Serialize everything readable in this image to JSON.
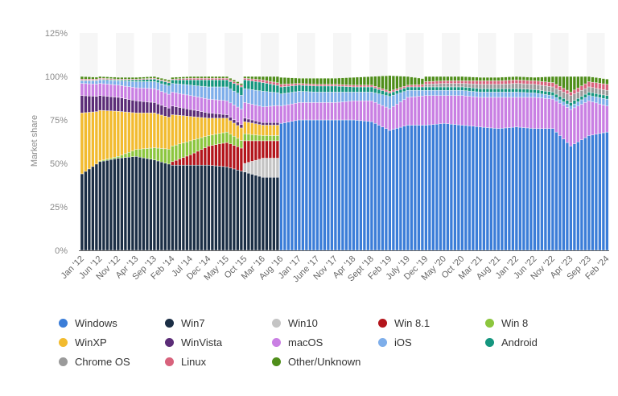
{
  "chart_data": {
    "type": "bar",
    "stacked": true,
    "title": "",
    "xlabel": "",
    "ylabel": "Market share",
    "ylim": [
      0,
      125
    ],
    "yticks": [
      "0%",
      "25%",
      "50%",
      "75%",
      "100%",
      "125%"
    ],
    "grid": false,
    "legend_position": "bottom",
    "categories": [
      "Jan '12",
      "Jun '12",
      "Nov '12",
      "Apr '13",
      "Sep '13",
      "Feb '14",
      "Jul '14",
      "Dec '14",
      "May '15",
      "Oct '15",
      "Mar '16",
      "Aug '16",
      "Jan '17",
      "June '17",
      "Nov '17",
      "Apr '18",
      "Sept '18",
      "Feb '19",
      "July '19",
      "Dec '19",
      "May '20",
      "Oct '20",
      "Mar '21",
      "Aug '21",
      "Jan '22",
      "Jun '22",
      "Nov '22",
      "Apr '23",
      "Sep '23",
      "Feb '24"
    ],
    "series": [
      {
        "name": "Windows",
        "color": "#3b7dd8",
        "values": [
          null,
          null,
          null,
          null,
          null,
          null,
          null,
          null,
          null,
          null,
          null,
          73,
          75,
          75,
          75,
          75,
          74,
          69,
          72,
          72,
          73,
          72,
          71,
          70,
          71,
          70,
          70,
          60,
          66,
          68
        ]
      },
      {
        "name": "Win7",
        "color": "#1b2e45",
        "values": [
          44,
          51,
          53,
          54,
          52,
          49,
          49,
          49,
          48,
          45,
          42,
          null,
          null,
          null,
          null,
          null,
          null,
          null,
          null,
          null,
          null,
          null,
          null,
          null,
          null,
          null,
          null,
          null,
          null,
          null
        ]
      },
      {
        "name": "Win10",
        "color": "#c4c4c4",
        "values": [
          null,
          null,
          null,
          null,
          null,
          null,
          null,
          null,
          null,
          5,
          11,
          null,
          null,
          null,
          null,
          null,
          null,
          null,
          null,
          null,
          null,
          null,
          null,
          null,
          null,
          null,
          null,
          null,
          null,
          null
        ]
      },
      {
        "name": "Win 8.1",
        "color": "#b3151c",
        "values": [
          null,
          null,
          null,
          null,
          null,
          2,
          6,
          11,
          14,
          13,
          10,
          null,
          null,
          null,
          null,
          null,
          null,
          null,
          null,
          null,
          null,
          null,
          null,
          null,
          null,
          null,
          null,
          null,
          null,
          null
        ]
      },
      {
        "name": "Win 8",
        "color": "#8cc63e",
        "values": [
          null,
          0.5,
          1,
          4,
          7,
          9,
          8,
          6,
          6,
          4,
          3,
          null,
          null,
          null,
          null,
          null,
          null,
          null,
          null,
          null,
          null,
          null,
          null,
          null,
          null,
          null,
          null,
          null,
          null,
          null
        ]
      },
      {
        "name": "WinXP",
        "color": "#f2bb2f",
        "values": [
          35,
          29,
          26,
          21,
          20,
          18,
          14,
          10,
          8,
          7,
          6,
          null,
          null,
          null,
          null,
          null,
          null,
          null,
          null,
          null,
          null,
          null,
          null,
          null,
          null,
          null,
          null,
          null,
          null,
          null
        ]
      },
      {
        "name": "WinVista",
        "color": "#5b2c77",
        "values": [
          10,
          8.5,
          8,
          7,
          6,
          5,
          4,
          3,
          2,
          2,
          1.5,
          null,
          null,
          null,
          null,
          null,
          null,
          null,
          null,
          null,
          null,
          null,
          null,
          null,
          null,
          null,
          null,
          null,
          null,
          null
        ]
      },
      {
        "name": "macOS",
        "color": "#c97fe3",
        "values": [
          7,
          7,
          7,
          7.5,
          8,
          8,
          8,
          8,
          8,
          9,
          9,
          10,
          10,
          10,
          10,
          11,
          12,
          12.5,
          16,
          17,
          16,
          17,
          17,
          18,
          17,
          18,
          17,
          21,
          20,
          15
        ]
      },
      {
        "name": "iOS",
        "color": "#7eaeea",
        "values": [
          1.5,
          2,
          2.5,
          3.5,
          4,
          5,
          6,
          7,
          8,
          8,
          9,
          7,
          6.5,
          6,
          6,
          5,
          5,
          7,
          4,
          3,
          3,
          3,
          3,
          3,
          3,
          2.5,
          2,
          2,
          3,
          4
        ]
      },
      {
        "name": "Android",
        "color": "#15967f",
        "values": [
          0.3,
          0.4,
          0.5,
          1,
          1.5,
          2,
          3,
          4,
          4,
          5,
          5,
          4,
          3.5,
          3.5,
          3.5,
          3,
          3,
          2,
          2,
          2,
          2,
          2,
          2,
          2,
          2,
          2,
          2,
          2,
          2,
          2
        ]
      },
      {
        "name": "Chrome OS",
        "color": "#9a9a9a",
        "values": [
          null,
          null,
          null,
          null,
          null,
          null,
          null,
          null,
          null,
          null,
          null,
          null,
          null,
          null,
          null,
          null,
          null,
          null,
          null,
          1.5,
          2,
          2,
          2.5,
          2.5,
          3,
          3,
          3,
          4,
          3,
          3
        ]
      },
      {
        "name": "Linux",
        "color": "#d8627c",
        "values": [
          0.7,
          0.6,
          0.5,
          0.5,
          0.5,
          0.5,
          1,
          1,
          1,
          1,
          1.5,
          1.5,
          1,
          1,
          1,
          1,
          1,
          1,
          1,
          1.5,
          1.5,
          1.5,
          2,
          2,
          2,
          2,
          2.5,
          2,
          3,
          3.5
        ]
      },
      {
        "name": "Other/Unknown",
        "color": "#4f8e1a",
        "values": [
          1.5,
          1,
          1,
          1,
          1,
          1,
          1,
          1,
          1,
          1,
          2,
          4,
          3,
          3.5,
          3.5,
          4.5,
          5,
          9,
          5,
          3,
          2.5,
          2.5,
          2,
          2,
          2,
          2,
          3.5,
          9,
          3,
          3
        ]
      }
    ]
  },
  "legend_order": [
    0,
    1,
    2,
    3,
    4,
    5,
    6,
    7,
    8,
    9,
    10,
    11,
    12
  ]
}
